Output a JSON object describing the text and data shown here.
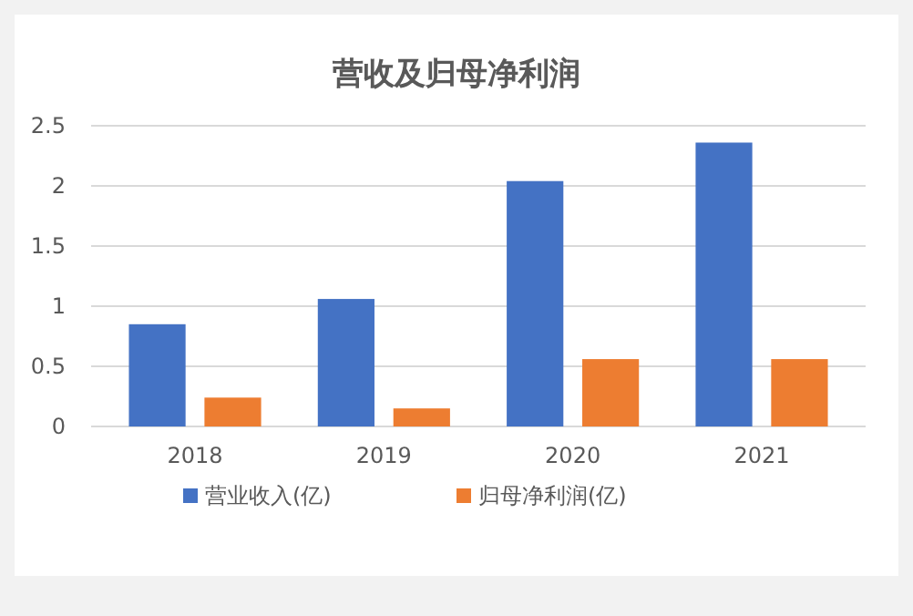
{
  "chart_data": {
    "type": "bar",
    "title": "营收及归母净利润",
    "categories": [
      "2018",
      "2019",
      "2020",
      "2021"
    ],
    "series": [
      {
        "name": "营业收入(亿)",
        "color": "#4472c4",
        "values": [
          0.85,
          1.06,
          2.04,
          2.36
        ]
      },
      {
        "name": "归母净利润(亿)",
        "color": "#ed7d31",
        "values": [
          0.24,
          0.15,
          0.56,
          0.56
        ]
      }
    ],
    "ylim": [
      0,
      2.5
    ],
    "yticks": [
      0,
      0.5,
      1,
      1.5,
      2,
      2.5
    ],
    "grid": "y",
    "legend": "bottom"
  }
}
